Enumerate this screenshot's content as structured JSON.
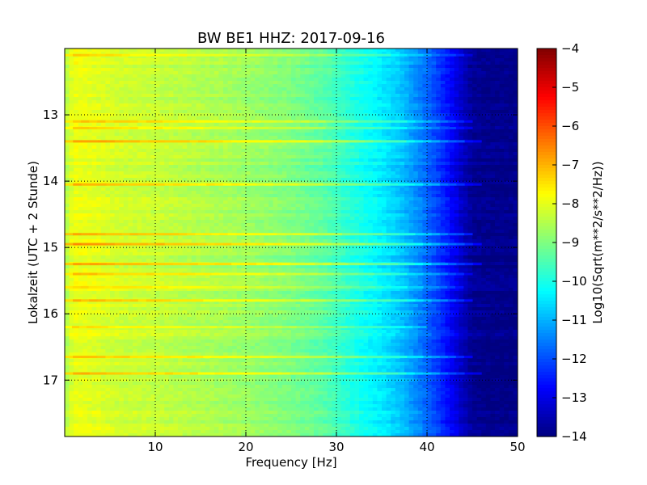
{
  "chart_data": {
    "type": "heatmap",
    "title": "BW BE1 HHZ: 2017-09-16",
    "xlabel": "Frequency [Hz]",
    "ylabel": "Lokalzeit (UTC + 2 Stunde)",
    "xlim": [
      0,
      50
    ],
    "ylim": [
      17.85,
      12.0
    ],
    "x_ticks": [
      10,
      20,
      30,
      40,
      50
    ],
    "y_ticks": [
      13,
      14,
      15,
      16,
      17
    ],
    "grid": true,
    "colormap": "jet",
    "colorbar": {
      "label": "Log10(Sqrt(m**2/s**2/Hz))",
      "range": [
        -14,
        -4
      ],
      "ticks": [
        -4,
        -5,
        -6,
        -7,
        -8,
        -9,
        -10,
        -11,
        -12,
        -13,
        -14
      ]
    },
    "spectrum_profile": {
      "frequency_hz": [
        0,
        1,
        3,
        6,
        10,
        15,
        20,
        25,
        29,
        31,
        33,
        35,
        37,
        39,
        41,
        43,
        44,
        45,
        47,
        50
      ],
      "log_amplitude": [
        -8.6,
        -7.9,
        -8.0,
        -8.2,
        -8.3,
        -8.5,
        -8.7,
        -9.0,
        -9.4,
        -9.8,
        -10.1,
        -10.4,
        -10.8,
        -11.4,
        -12.1,
        -12.9,
        -13.4,
        -13.8,
        -13.9,
        -13.9
      ]
    },
    "bright_bands": [
      {
        "time": 12.1,
        "max_freq_hz": 45,
        "delta": 0.6
      },
      {
        "time": 13.1,
        "max_freq_hz": 45,
        "delta": 0.8
      },
      {
        "time": 13.2,
        "max_freq_hz": 45,
        "delta": 0.6
      },
      {
        "time": 13.4,
        "max_freq_hz": 46,
        "delta": 1.1
      },
      {
        "time": 14.05,
        "max_freq_hz": 46,
        "delta": 0.9
      },
      {
        "time": 14.8,
        "max_freq_hz": 45,
        "delta": 1.0
      },
      {
        "time": 14.95,
        "max_freq_hz": 46,
        "delta": 1.2
      },
      {
        "time": 15.25,
        "max_freq_hz": 46,
        "delta": 1.1
      },
      {
        "time": 15.4,
        "max_freq_hz": 45,
        "delta": 0.8
      },
      {
        "time": 15.6,
        "max_freq_hz": 44,
        "delta": 0.6
      },
      {
        "time": 15.8,
        "max_freq_hz": 45,
        "delta": 0.9
      },
      {
        "time": 16.2,
        "max_freq_hz": 40,
        "delta": 0.5
      },
      {
        "time": 16.65,
        "max_freq_hz": 45,
        "delta": 0.8
      },
      {
        "time": 16.9,
        "max_freq_hz": 46,
        "delta": 0.9
      }
    ]
  }
}
